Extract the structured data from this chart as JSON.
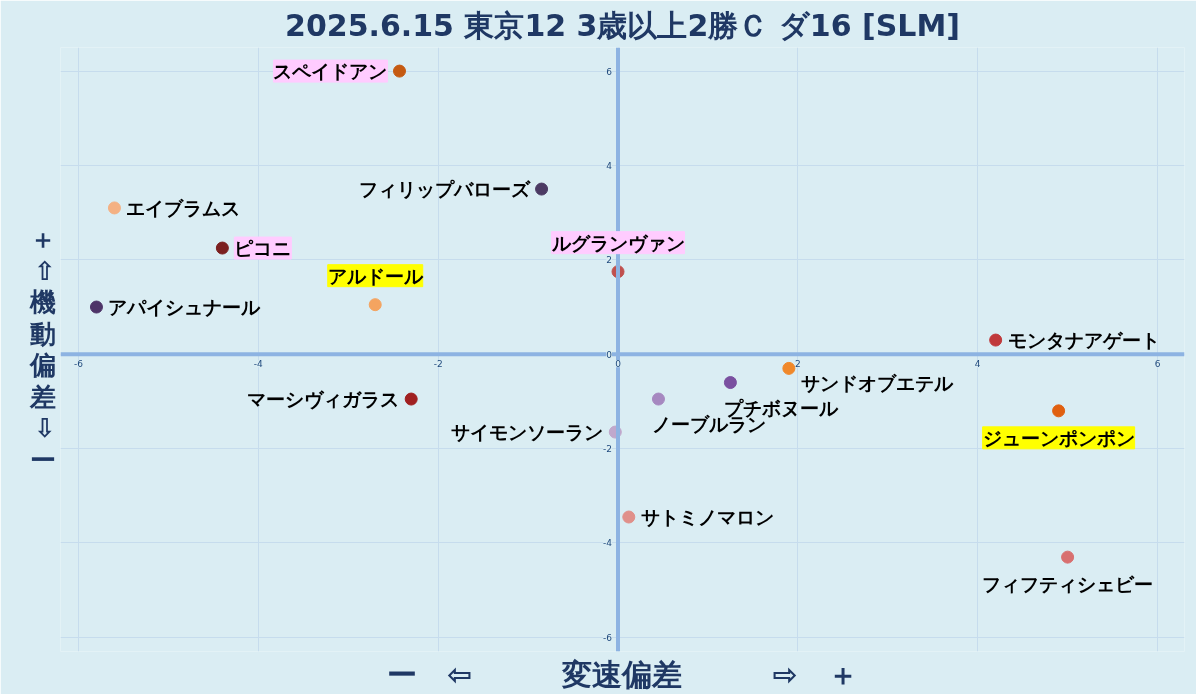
{
  "chart_data": {
    "type": "scatter",
    "title": "2025.6.15 東京12 3歳以上2勝Ｃ ダ16 [SLM]",
    "xlabel": "ー　⇦　　　変速偏差　　　⇨　＋",
    "ylabel": "＋⇧機動偏差⇩ー",
    "xlim": [
      -6.2,
      6.3
    ],
    "ylim": [
      -6.3,
      6.5
    ],
    "xticks": [
      -6,
      -4,
      -2,
      0,
      2,
      4,
      6
    ],
    "yticks": [
      -6,
      -4,
      -2,
      0,
      2,
      4,
      6
    ],
    "grid": true,
    "marker": "circle",
    "series": [
      {
        "name": "スペイドアン",
        "color": "#c55a11",
        "x": [
          -2.43
        ],
        "values": [
          6.0
        ]
      },
      {
        "name": "フィリップバローズ",
        "color": "#4b3a63",
        "x": [
          -0.85
        ],
        "values": [
          3.5
        ]
      },
      {
        "name": "エイブラムス",
        "color": "#f4b183",
        "x": [
          -5.6
        ],
        "values": [
          3.1
        ]
      },
      {
        "name": "ピコニ",
        "color": "#7b2020",
        "x": [
          -4.4
        ],
        "values": [
          2.25
        ]
      },
      {
        "name": "アルドール",
        "color": "#f4a460",
        "x": [
          -2.7
        ],
        "values": [
          1.05
        ]
      },
      {
        "name": "アパイシュナール",
        "color": "#4e3468",
        "x": [
          -5.8
        ],
        "values": [
          1.0
        ]
      },
      {
        "name": "ルグランヴァン",
        "color": "#c0504d",
        "x": [
          0.0
        ],
        "values": [
          1.75
        ]
      },
      {
        "name": "モンタナアゲート",
        "color": "#c0393b",
        "x": [
          4.2
        ],
        "values": [
          0.3
        ]
      },
      {
        "name": "サンドオブエテル",
        "color": "#f0882a",
        "x": [
          1.9
        ],
        "values": [
          -0.3
        ]
      },
      {
        "name": "プチボヌール",
        "color": "#7a50a0",
        "x": [
          1.25
        ],
        "values": [
          -0.6
        ]
      },
      {
        "name": "ノーブルラン",
        "color": "#a688c0",
        "x": [
          0.45
        ],
        "values": [
          -0.95
        ]
      },
      {
        "name": "サイモンソーラン",
        "color": "#c0a8cc",
        "x": [
          -0.03
        ],
        "values": [
          -1.65
        ]
      },
      {
        "name": "サトミノマロン",
        "color": "#e0908a",
        "x": [
          0.12
        ],
        "values": [
          -3.45
        ]
      },
      {
        "name": "ジューンポンポン",
        "color": "#e06010",
        "x": [
          4.9
        ],
        "values": [
          -1.2
        ]
      },
      {
        "name": "フィフティシェビー",
        "color": "#d87070",
        "x": [
          5.0
        ],
        "values": [
          -4.3
        ]
      },
      {
        "name": "マーシヴィガラス",
        "color": "#a02020",
        "x": [
          -2.3
        ],
        "values": [
          -0.95
        ]
      }
    ]
  }
}
